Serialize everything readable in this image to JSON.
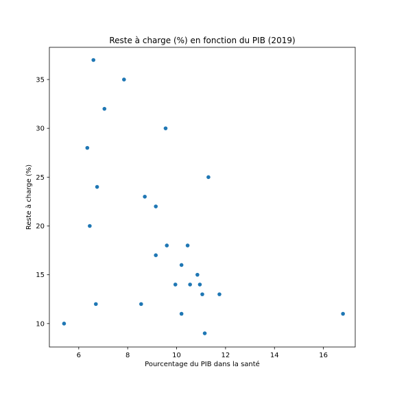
{
  "chart_data": {
    "type": "scatter",
    "title": "Reste à charge (%) en fonction du PIB (2019)",
    "xlabel": "Pourcentage du PIB dans la santé",
    "ylabel": "Reste à charge (%)",
    "xlim": [
      4.8,
      17.3
    ],
    "ylim": [
      7.6,
      38.3
    ],
    "xticks": [
      6,
      8,
      10,
      12,
      14,
      16
    ],
    "yticks": [
      10,
      15,
      20,
      25,
      30,
      35
    ],
    "grid": false,
    "legend": "none",
    "marker_color": "#1f77b4",
    "x": [
      6.6,
      7.85,
      7.05,
      6.35,
      9.55,
      6.75,
      11.3,
      8.7,
      9.15,
      6.45,
      9.6,
      10.45,
      9.15,
      10.2,
      10.85,
      9.95,
      10.55,
      10.95,
      11.05,
      11.75,
      6.7,
      8.55,
      10.2,
      5.4,
      16.8,
      11.15
    ],
    "y": [
      37,
      35,
      32,
      28,
      30,
      24,
      25,
      23,
      22,
      20,
      18,
      18,
      17,
      16,
      15,
      14,
      14,
      14,
      13,
      13,
      12,
      12,
      11,
      10,
      11,
      9
    ]
  }
}
